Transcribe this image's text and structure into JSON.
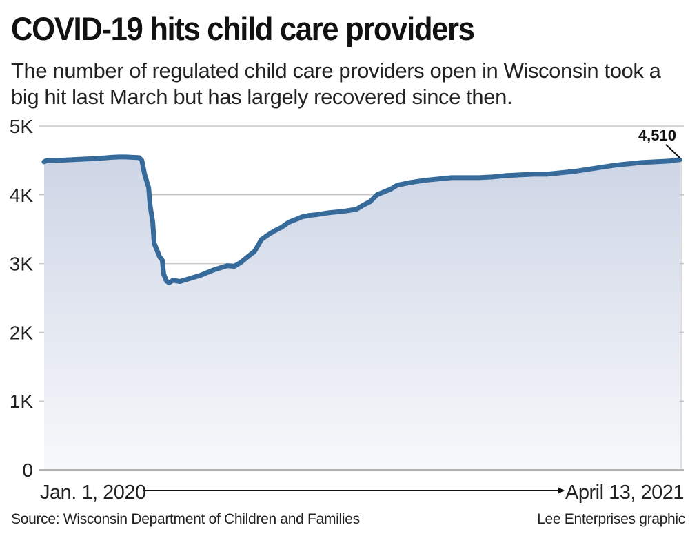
{
  "title": "COVID-19 hits child care providers",
  "subtitle": "The number of regulated child care providers open in Wisconsin took a big hit last March but has largely recovered since then.",
  "source": "Source: Wisconsin Department of Children and Families",
  "credit": "Lee Enterprises graphic",
  "colors": {
    "line": "#356a9a",
    "fill_top": "#cdd5e5",
    "fill_bottom": "#f7f8fb",
    "grid": "#c8c8c8"
  },
  "chart_data": {
    "type": "area",
    "title": "COVID-19 hits child care providers",
    "xlabel": "",
    "ylabel": "",
    "ylim": [
      0,
      5000
    ],
    "xlim": [
      0,
      468
    ],
    "x_unit": "days since Jan. 1, 2020",
    "y_ticks": [
      0,
      1000,
      2000,
      3000,
      4000,
      5000
    ],
    "y_tick_labels": [
      "0",
      "1K",
      "2K",
      "3K",
      "4K",
      "5K"
    ],
    "x_start_label": "Jan. 1, 2020",
    "x_end_label": "April 13, 2021",
    "end_annotation": "4,510",
    "grid": true,
    "series": [
      {
        "name": "Regulated child care providers open",
        "x": [
          0,
          2,
          10,
          20,
          30,
          40,
          50,
          55,
          60,
          65,
          70,
          72,
          74,
          77,
          78,
          80,
          81,
          85,
          87,
          88,
          90,
          92,
          95,
          97,
          100,
          110,
          115,
          120,
          125,
          130,
          135,
          140,
          145,
          150,
          155,
          160,
          165,
          170,
          175,
          180,
          185,
          190,
          195,
          200,
          210,
          220,
          230,
          235,
          240,
          245,
          250,
          255,
          260,
          270,
          280,
          290,
          300,
          310,
          320,
          330,
          340,
          350,
          360,
          370,
          380,
          390,
          400,
          410,
          420,
          430,
          440,
          450,
          460,
          465,
          468
        ],
        "values": [
          4480,
          4500,
          4500,
          4510,
          4520,
          4530,
          4545,
          4550,
          4550,
          4545,
          4540,
          4500,
          4300,
          4100,
          3850,
          3600,
          3300,
          3100,
          3050,
          2850,
          2750,
          2720,
          2760,
          2750,
          2740,
          2800,
          2830,
          2870,
          2910,
          2940,
          2970,
          2960,
          3020,
          3100,
          3180,
          3350,
          3420,
          3480,
          3530,
          3600,
          3640,
          3680,
          3700,
          3710,
          3740,
          3760,
          3790,
          3850,
          3900,
          4000,
          4040,
          4080,
          4140,
          4180,
          4210,
          4230,
          4250,
          4250,
          4250,
          4260,
          4280,
          4290,
          4300,
          4300,
          4320,
          4340,
          4370,
          4400,
          4430,
          4450,
          4470,
          4480,
          4490,
          4505,
          4510
        ]
      }
    ]
  }
}
